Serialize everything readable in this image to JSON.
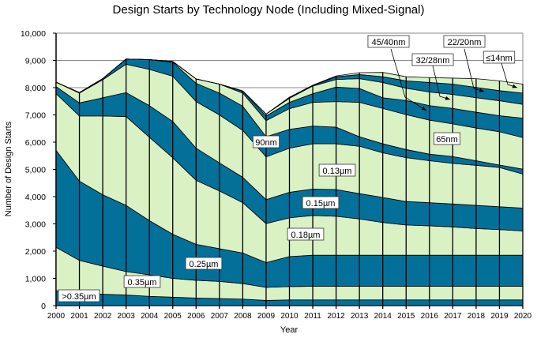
{
  "chart_data": {
    "type": "area",
    "stacked": true,
    "title": "Design Starts by Technology Node (Including Mixed-Signal)",
    "xlabel": "Year",
    "ylabel": "Number of Design Starts",
    "ylim": [
      0,
      10000
    ],
    "yticks": [
      0,
      1000,
      2000,
      3000,
      4000,
      5000,
      6000,
      7000,
      8000,
      9000,
      10000
    ],
    "ytick_labels": [
      "0",
      "1,000",
      "2,000",
      "3,000",
      "4,000",
      "5,000",
      "6,000",
      "7,000",
      "8,000",
      "9,000",
      "10,000"
    ],
    "x": [
      "2000",
      "2001",
      "2002",
      "2003",
      "2004",
      "2005",
      "2006",
      "2007",
      "2008",
      "2009",
      "2010",
      "2011",
      "2012",
      "2013",
      "2014",
      "2015",
      "2016",
      "2017",
      "2018",
      "2019",
      "2020"
    ],
    "grid": "horizontal",
    "colors": {
      "dark": "#03709A",
      "light": "#DAF1C4"
    },
    "series": [
      {
        "name": ">0.35µm",
        "shade": "dark",
        "values": [
          550,
          450,
          420,
          390,
          340,
          310,
          280,
          260,
          240,
          190,
          210,
          210,
          210,
          210,
          210,
          210,
          210,
          210,
          210,
          210,
          210
        ]
      },
      {
        "name": "0.35µm",
        "shade": "light",
        "values": [
          1590,
          1210,
          1030,
          860,
          790,
          690,
          650,
          630,
          570,
          480,
          490,
          500,
          500,
          500,
          500,
          500,
          500,
          500,
          500,
          500,
          500
        ]
      },
      {
        "name": "0.25µm",
        "shade": "dark",
        "values": [
          3560,
          2910,
          2620,
          2430,
          1990,
          1620,
          1320,
          1200,
          1120,
          910,
          1100,
          1140,
          1140,
          1140,
          1140,
          1140,
          1140,
          1140,
          1140,
          1140,
          1140
        ]
      },
      {
        "name": "0.18µm",
        "shade": "light",
        "values": [
          2080,
          2390,
          2890,
          3260,
          3060,
          2810,
          2350,
          2120,
          1850,
          1430,
          1420,
          1460,
          1430,
          1330,
          1200,
          1110,
          1080,
          1040,
          980,
          940,
          890
        ]
      },
      {
        "name": "0.15µm",
        "shade": "dark",
        "values": [
          260,
          480,
          670,
          880,
          1160,
          1330,
          1180,
          1030,
          930,
          880,
          940,
          970,
          980,
          930,
          920,
          860,
          850,
          840,
          850,
          840,
          840
        ]
      },
      {
        "name": "0.13µm",
        "shade": "light",
        "values": [
          160,
          360,
          660,
          1040,
          1330,
          1660,
          1710,
          1760,
          1720,
          1570,
          1620,
          1660,
          1680,
          1740,
          1640,
          1610,
          1540,
          1490,
          1470,
          1440,
          1250
        ]
      },
      {
        "name": "90nm",
        "shade": "dark",
        "values": [
          0,
          20,
          40,
          190,
          360,
          510,
          670,
          800,
          890,
          740,
          690,
          650,
          610,
          350,
          330,
          300,
          240,
          250,
          170,
          90,
          180
        ]
      },
      {
        "name": "65nm",
        "shade": "light",
        "values": [
          0,
          0,
          0,
          0,
          0,
          30,
          160,
          330,
          480,
          590,
          760,
          870,
          940,
          1260,
          1300,
          1280,
          1250,
          1200,
          1200,
          1220,
          1160
        ]
      },
      {
        "name": "45/40nm",
        "shade": "dark",
        "values": [
          0,
          0,
          0,
          0,
          0,
          0,
          0,
          0,
          70,
          170,
          230,
          320,
          530,
          510,
          390,
          520,
          530,
          570,
          580,
          590,
          710
        ]
      },
      {
        "name": "32/28nm",
        "shade": "light",
        "values": [
          0,
          0,
          0,
          0,
          0,
          0,
          0,
          0,
          10,
          70,
          150,
          280,
          280,
          360,
          560,
          450,
          500,
          510,
          530,
          550,
          510
        ]
      },
      {
        "name": "22/20nm",
        "shade": "dark",
        "values": [
          0,
          0,
          0,
          0,
          0,
          0,
          0,
          0,
          0,
          0,
          30,
          20,
          100,
          150,
          210,
          270,
          350,
          380,
          380,
          370,
          410
        ]
      },
      {
        "name": "≤14nm",
        "shade": "light",
        "values": [
          0,
          0,
          0,
          0,
          0,
          0,
          0,
          0,
          0,
          0,
          10,
          10,
          30,
          70,
          160,
          150,
          180,
          220,
          320,
          360,
          330
        ]
      }
    ],
    "annotations": [
      ">0.35µm",
      "0.35µm",
      "0.25µm",
      "0.18µm",
      "0.15µm",
      "0.13µm",
      "90nm",
      "65nm",
      "45/40nm",
      "32/28nm",
      "22/20nm",
      "≤14nm"
    ]
  }
}
